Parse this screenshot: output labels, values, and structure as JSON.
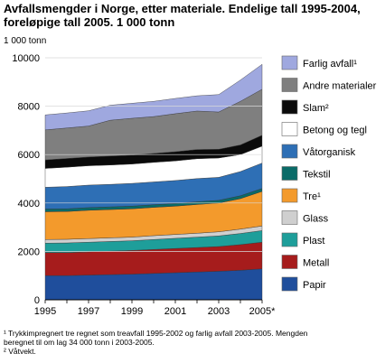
{
  "title_lines": [
    "Avfallsmengder i Norge, etter materiale. Endelige tall 1995-2004,",
    "foreløpige tall 2005. 1 000 tonn"
  ],
  "unit_label": "1 000 tonn",
  "footnotes": [
    "¹ Trykkimpregnert tre regnet som treavfall 1995-2002 og farlig avfall 2003-2005. Mengden",
    "beregnet til om lag 34 000 tonn i 2003-2005.",
    "² Våtvekt."
  ],
  "chart_data": {
    "type": "area",
    "stacked": true,
    "x": [
      1995,
      1996,
      1997,
      1998,
      1999,
      2000,
      2001,
      2002,
      2003,
      2004,
      2005
    ],
    "x_tick_labels": [
      "1995",
      "1997",
      "1999",
      "2001",
      "2003",
      "2005*"
    ],
    "x_tick_values": [
      1995,
      1997,
      1999,
      2001,
      2003,
      2005
    ],
    "ylim": [
      0,
      10000
    ],
    "y_ticks": [
      0,
      2000,
      4000,
      6000,
      8000,
      10000
    ],
    "y_tick_labels": [
      "0",
      "2000",
      "4000",
      "6000",
      "8000",
      "10000"
    ],
    "grid": true,
    "legend_position": "right",
    "series": [
      {
        "name": "Papir",
        "color": "#1f4e9c",
        "values": [
          1000,
          1000,
          1020,
          1040,
          1060,
          1090,
          1120,
          1150,
          1180,
          1220,
          1280
        ]
      },
      {
        "name": "Metall",
        "color": "#a61c1c",
        "values": [
          950,
          950,
          960,
          970,
          980,
          990,
          1000,
          1010,
          1020,
          1060,
          1100
        ]
      },
      {
        "name": "Plast",
        "color": "#1e9e9a",
        "values": [
          390,
          400,
          400,
          400,
          400,
          410,
          420,
          430,
          440,
          460,
          480
        ]
      },
      {
        "name": "Glass",
        "color": "#cfcfcf",
        "values": [
          150,
          150,
          150,
          150,
          150,
          160,
          160,
          160,
          170,
          180,
          190
        ]
      },
      {
        "name": "Tre¹",
        "color": "#f39a2c",
        "values": [
          1150,
          1150,
          1170,
          1170,
          1170,
          1170,
          1170,
          1190,
          1190,
          1260,
          1430
        ]
      },
      {
        "name": "Tekstil",
        "color": "#0a6b68",
        "values": [
          110,
          110,
          110,
          110,
          110,
          110,
          110,
          110,
          110,
          120,
          120
        ]
      },
      {
        "name": "Våtorganisk",
        "color": "#2e6fb5",
        "values": [
          900,
          920,
          930,
          930,
          940,
          940,
          950,
          960,
          950,
          1000,
          1050
        ]
      },
      {
        "name": "Betong og tegl",
        "color": "#ffffff",
        "values": [
          780,
          800,
          800,
          800,
          800,
          810,
          810,
          820,
          800,
          700,
          700
        ]
      },
      {
        "name": "Slam²",
        "color": "#0a0a0a",
        "values": [
          350,
          360,
          360,
          370,
          370,
          370,
          380,
          380,
          360,
          400,
          450
        ]
      },
      {
        "name": "Andre materialer",
        "color": "#7f7f7f",
        "values": [
          1240,
          1260,
          1280,
          1480,
          1520,
          1520,
          1570,
          1590,
          1540,
          1800,
          1900
        ]
      },
      {
        "name": "Farlig avfall¹",
        "color": "#9fa8df",
        "values": [
          620,
          620,
          630,
          620,
          620,
          630,
          630,
          630,
          720,
          880,
          1030
        ]
      }
    ]
  }
}
